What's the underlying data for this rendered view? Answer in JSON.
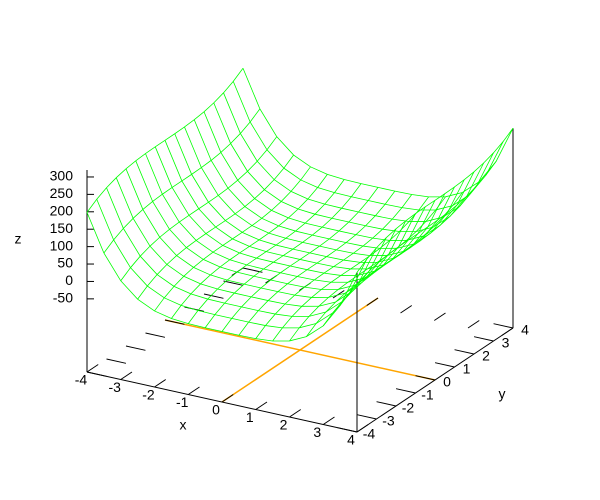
{
  "chart_data": {
    "type": "surface",
    "xlabel": "x",
    "ylabel": "y",
    "zlabel": "z",
    "xlim": [
      -4,
      4
    ],
    "ylim": [
      -4,
      4
    ],
    "zlim": [
      -260,
      320
    ],
    "xticks": [
      -4,
      -3,
      -2,
      -1,
      0,
      1,
      2,
      3,
      4
    ],
    "yticks": [
      -4,
      -3,
      -2,
      -1,
      0,
      1,
      2,
      3,
      4
    ],
    "zticks": [
      -50,
      0,
      50,
      100,
      150,
      200,
      250,
      300
    ],
    "color": "#00ff00",
    "zeroaxis_color": "#ffa500",
    "x": [
      -4,
      -3.5,
      -3,
      -2.5,
      -2,
      -1.5,
      -1,
      -0.5,
      0,
      0.5,
      1,
      1.5,
      2,
      2.5,
      3,
      3.5,
      4
    ],
    "y": [
      -4,
      -3.5,
      -3,
      -2.5,
      -2,
      -1.5,
      -1,
      -0.5,
      0,
      0.5,
      1,
      1.5,
      2,
      2.5,
      3,
      3.5,
      4
    ],
    "z": [
      [
        198.4,
        92.5,
        23.4,
        -18.5,
        -41.6,
        -52.5,
        -56.6,
        -57.5,
        -57.6,
        -57.5,
        -56.6,
        -52.5,
        -41.6,
        -18.5,
        23.4,
        92.5,
        198.4
      ],
      [
        217.4,
        111.5,
        42.4,
        0.5,
        -22.6,
        -33.5,
        -37.6,
        -38.5,
        -38.6,
        -38.5,
        -37.6,
        -33.5,
        -22.6,
        0.5,
        42.4,
        111.5,
        217.4
      ],
      [
        231.7,
        125.8,
        56.7,
        14.8,
        -8.3,
        -19.2,
        -23.3,
        -24.2,
        -24.3,
        -24.2,
        -23.3,
        -19.2,
        -8.3,
        14.8,
        56.7,
        125.8,
        231.7
      ],
      [
        241.9,
        136,
        66.9,
        25,
        1.9,
        -9,
        -13.1,
        -14,
        -14.1,
        -14,
        -13.1,
        -9,
        1.9,
        25,
        66.9,
        136,
        241.9
      ],
      [
        248.8,
        142.9,
        73.8,
        31.9,
        8.8,
        -2.1,
        -6.2,
        -7.1,
        -7.2,
        -7.1,
        -6.2,
        -2.1,
        8.8,
        31.9,
        73.8,
        142.9,
        248.8
      ],
      [
        253,
        147.1,
        78,
        36.1,
        13,
        2.1,
        -2,
        -2.9,
        -3,
        -2.9,
        -2,
        2.1,
        13,
        36.1,
        78,
        147.1,
        253
      ],
      [
        255.1,
        149.2,
        80.1,
        38.2,
        15.1,
        4.2,
        0.1,
        -0.8,
        -0.9,
        -0.8,
        0.1,
        4.2,
        15.1,
        38.2,
        80.1,
        149.2,
        255.1
      ],
      [
        255.9,
        150,
        80.9,
        39,
        15.9,
        5,
        0.9,
        0,
        -0.1,
        0,
        0.9,
        5,
        15.9,
        39,
        80.9,
        150,
        255.9
      ],
      [
        256,
        150.1,
        81,
        39.1,
        16,
        5.1,
        1,
        0.1,
        0,
        0.1,
        1,
        5.1,
        16,
        39.1,
        81,
        150.1,
        256
      ],
      [
        256.1,
        150.2,
        81.1,
        39.2,
        16.1,
        5.2,
        1.1,
        0.2,
        0.1,
        0.2,
        1.1,
        5.2,
        16.1,
        39.2,
        81.1,
        150.2,
        256.1
      ],
      [
        256.9,
        151,
        81.9,
        40,
        16.9,
        6,
        1.9,
        1,
        0.9,
        1,
        1.9,
        6,
        16.9,
        40,
        81.9,
        151,
        256.9
      ],
      [
        259,
        153.1,
        84,
        42.1,
        19,
        8.1,
        4,
        3.1,
        3,
        3.1,
        4,
        8.1,
        19,
        42.1,
        84,
        153.1,
        259
      ],
      [
        263.2,
        157.3,
        88.2,
        46.3,
        23.2,
        12.3,
        8.2,
        7.3,
        7.2,
        7.3,
        8.2,
        12.3,
        23.2,
        46.3,
        88.2,
        157.3,
        263.2
      ],
      [
        270.1,
        164.2,
        95.1,
        53.2,
        30.1,
        19.2,
        15.1,
        14.2,
        14.1,
        14.2,
        15.1,
        19.2,
        30.1,
        53.2,
        95.1,
        164.2,
        270.1
      ],
      [
        280.3,
        174.4,
        105.3,
        63.4,
        40.3,
        29.4,
        25.3,
        24.4,
        24.3,
        24.4,
        25.3,
        29.4,
        40.3,
        63.4,
        105.3,
        174.4,
        280.3
      ],
      [
        294.6,
        188.7,
        119.6,
        77.7,
        54.6,
        43.7,
        39.6,
        38.7,
        38.6,
        38.7,
        39.6,
        43.7,
        54.6,
        77.7,
        119.6,
        188.7,
        294.6
      ],
      [
        313.6,
        207.7,
        138.6,
        96.7,
        73.6,
        62.7,
        58.6,
        57.7,
        57.6,
        57.7,
        58.6,
        62.7,
        73.6,
        96.7,
        138.6,
        207.7,
        313.6
      ]
    ]
  }
}
